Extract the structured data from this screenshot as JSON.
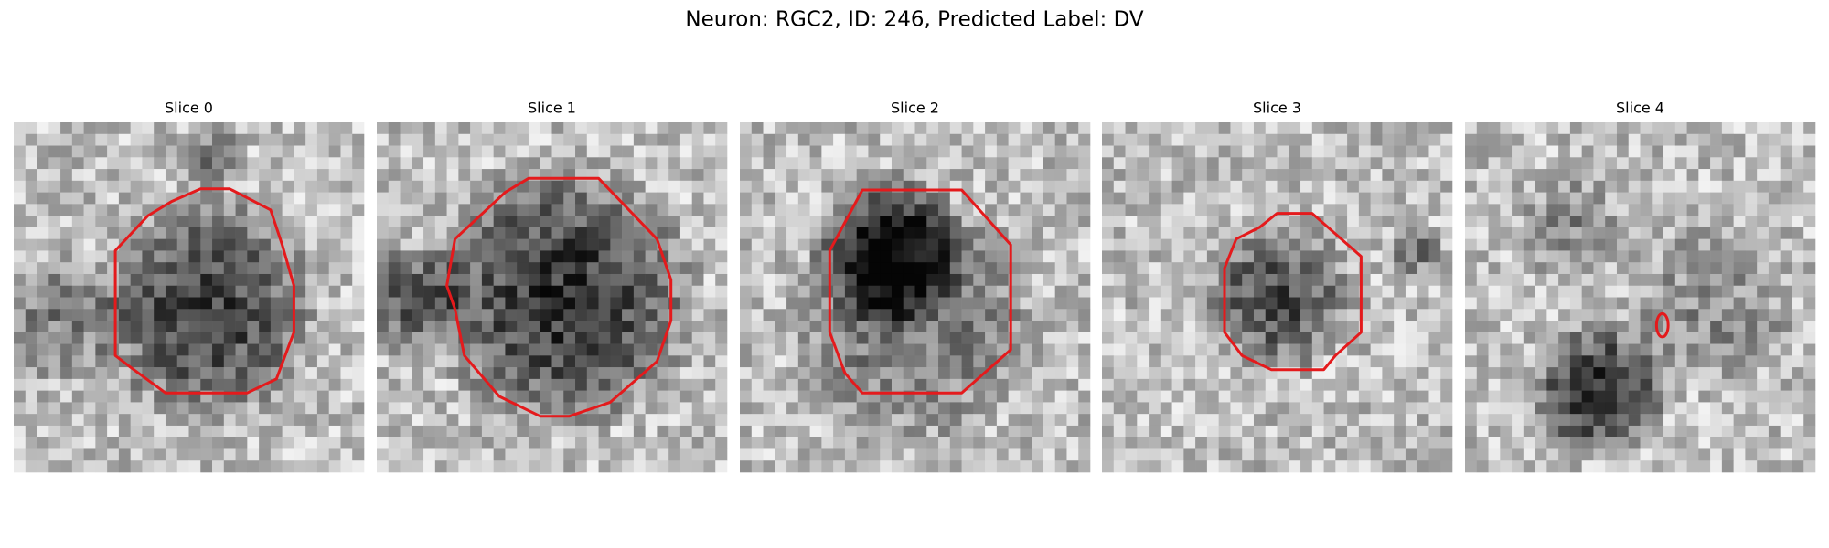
{
  "header": {
    "title": "Neuron: RGC2, ID: 246, Predicted Label: DV"
  },
  "panels": [
    {
      "title": "Slice 0"
    },
    {
      "title": "Slice 1"
    },
    {
      "title": "Slice 2"
    },
    {
      "title": "Slice 3"
    },
    {
      "title": "Slice 4"
    }
  ]
}
